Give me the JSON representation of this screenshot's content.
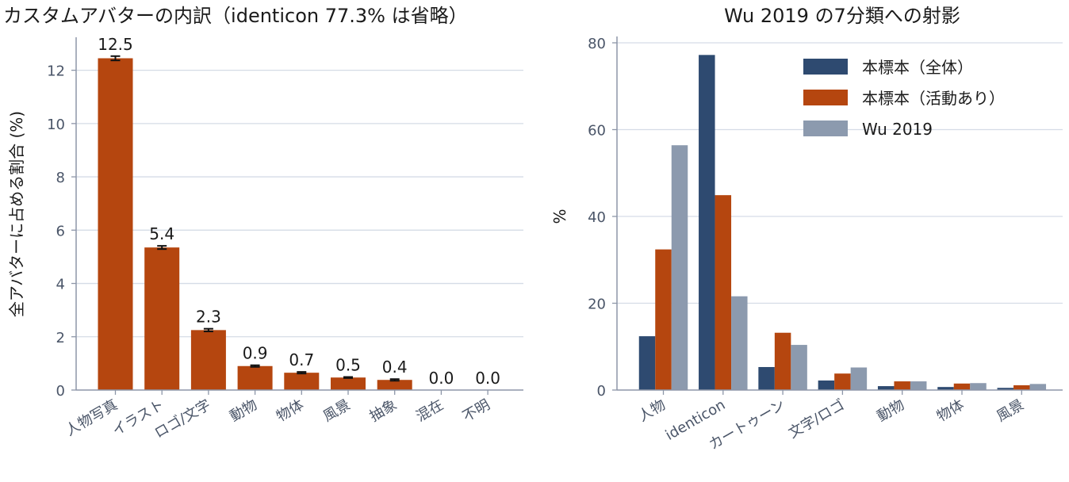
{
  "chart_data": [
    {
      "type": "bar",
      "title": "カスタムアバターの内訳（identicon 77.3% は省略）",
      "xlabel": "",
      "ylabel": "全アバターに占める割合 (%)",
      "categories": [
        "人物写真",
        "イラスト",
        "ロゴ/文字",
        "動物",
        "物体",
        "風景",
        "抽象",
        "混在",
        "不明"
      ],
      "values": [
        12.45,
        5.35,
        2.25,
        0.9,
        0.65,
        0.47,
        0.38,
        0.0,
        0.0
      ],
      "error": [
        0.08,
        0.06,
        0.05,
        0.03,
        0.03,
        0.02,
        0.03,
        0.0,
        0.0
      ],
      "data_labels": [
        "12.5",
        "5.4",
        "2.3",
        "0.9",
        "0.7",
        "0.5",
        "0.4",
        "0.0",
        "0.0"
      ],
      "ylim": [
        0,
        13
      ],
      "yticks": [
        0,
        2,
        4,
        6,
        8,
        10,
        12
      ],
      "grid": true,
      "colors": {
        "bar": "#b5460f",
        "error": "#111111",
        "grid": "#d5dce6"
      }
    },
    {
      "type": "bar",
      "title": "Wu 2019 の7分類への射影",
      "xlabel": "",
      "ylabel": "%",
      "categories": [
        "人物",
        "identicon",
        "カートゥーン",
        "文字/ロゴ",
        "動物",
        "物体",
        "風景"
      ],
      "series": [
        {
          "name": "本標本（全体）",
          "color": "#2e4a70",
          "values": [
            12.4,
            77.2,
            5.3,
            2.2,
            0.9,
            0.7,
            0.5
          ]
        },
        {
          "name": "本標本（活動あり）",
          "color": "#b5460f",
          "values": [
            32.4,
            44.9,
            13.2,
            3.8,
            2.0,
            1.5,
            1.1
          ]
        },
        {
          "name": "Wu 2019",
          "color": "#8c9aae",
          "values": [
            56.4,
            21.6,
            10.4,
            5.2,
            2.0,
            1.6,
            1.4
          ]
        }
      ],
      "ylim": [
        0,
        80
      ],
      "yticks": [
        0,
        20,
        40,
        60,
        80
      ],
      "grid": true,
      "legend": "top-right"
    }
  ]
}
